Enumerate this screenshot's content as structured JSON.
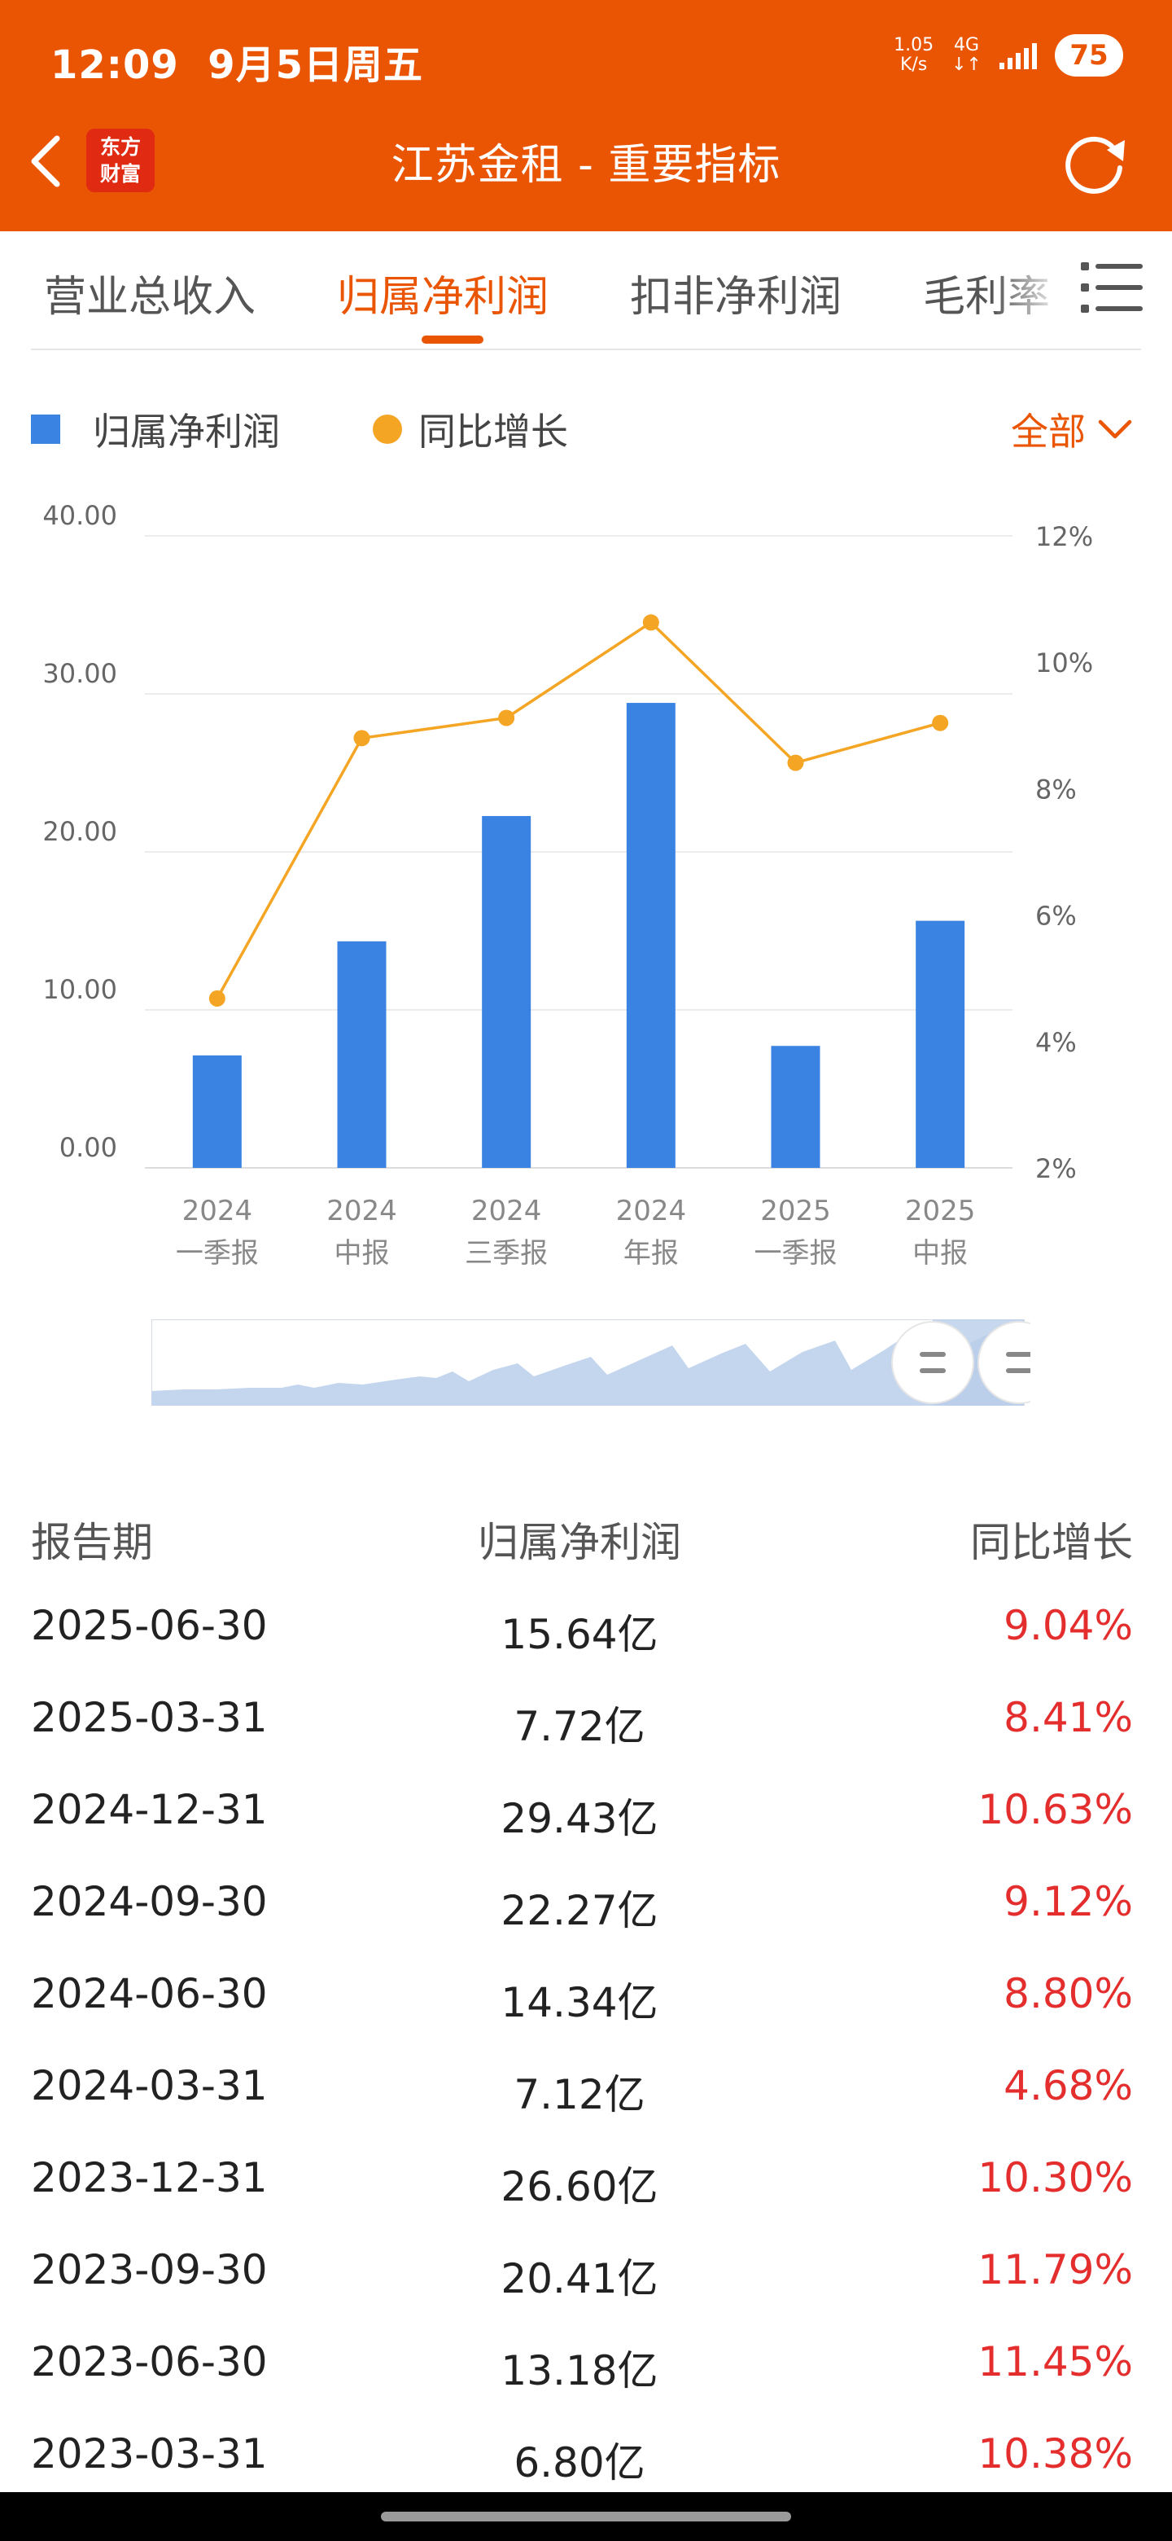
{
  "status_bar": {
    "time": "12:09",
    "date": "9月5日周五",
    "net_speed": "1.05",
    "net_unit": "K/s",
    "network": "4G",
    "battery": "75"
  },
  "header": {
    "logo_line1": "东方",
    "logo_line2": "财富",
    "title": "江苏金租 - 重要指标"
  },
  "tabs": [
    {
      "label": "营业总收入",
      "active": false
    },
    {
      "label": "归属净利润",
      "active": true
    },
    {
      "label": "扣非净利润",
      "active": false
    },
    {
      "label": "毛利率",
      "active": false
    }
  ],
  "legend": {
    "bar_label": "归属净利润",
    "line_label": "同比增长",
    "filter_label": "全部"
  },
  "colors": {
    "brand": "#ea5504",
    "bar": "#3a83e3",
    "line": "#f5a524",
    "positive": "#e42d2d"
  },
  "chart_data": {
    "type": "bar",
    "categories": [
      "2024\n一季报",
      "2024\n中报",
      "2024\n三季报",
      "2024\n年报",
      "2025\n一季报",
      "2025\n中报"
    ],
    "series": [
      {
        "name": "归属净利润",
        "type": "bar",
        "axis": "left",
        "values": [
          7.12,
          14.34,
          22.27,
          29.43,
          7.72,
          15.64
        ]
      },
      {
        "name": "同比增长",
        "type": "line",
        "axis": "right",
        "values": [
          4.68,
          8.8,
          9.12,
          10.63,
          8.41,
          9.04
        ]
      }
    ],
    "y_left": {
      "min": 0,
      "max": 40,
      "ticks": [
        "0.00",
        "10.00",
        "20.00",
        "30.00",
        "40.00"
      ]
    },
    "y_right": {
      "min": 2,
      "max": 12,
      "ticks": [
        "2%",
        "4%",
        "6%",
        "8%",
        "10%",
        "12%"
      ]
    },
    "grid": true,
    "legend_position": "top-left"
  },
  "table": {
    "headers": [
      "报告期",
      "归属净利润",
      "同比增长"
    ],
    "rows": [
      {
        "date": "2025-06-30",
        "value": "15.64亿",
        "growth": "9.04%"
      },
      {
        "date": "2025-03-31",
        "value": "7.72亿",
        "growth": "8.41%"
      },
      {
        "date": "2024-12-31",
        "value": "29.43亿",
        "growth": "10.63%"
      },
      {
        "date": "2024-09-30",
        "value": "22.27亿",
        "growth": "9.12%"
      },
      {
        "date": "2024-06-30",
        "value": "14.34亿",
        "growth": "8.80%"
      },
      {
        "date": "2024-03-31",
        "value": "7.12亿",
        "growth": "4.68%"
      },
      {
        "date": "2023-12-31",
        "value": "26.60亿",
        "growth": "10.30%"
      },
      {
        "date": "2023-09-30",
        "value": "20.41亿",
        "growth": "11.79%"
      },
      {
        "date": "2023-06-30",
        "value": "13.18亿",
        "growth": "11.45%"
      },
      {
        "date": "2023-03-31",
        "value": "6.80亿",
        "growth": "10.38%"
      }
    ]
  }
}
